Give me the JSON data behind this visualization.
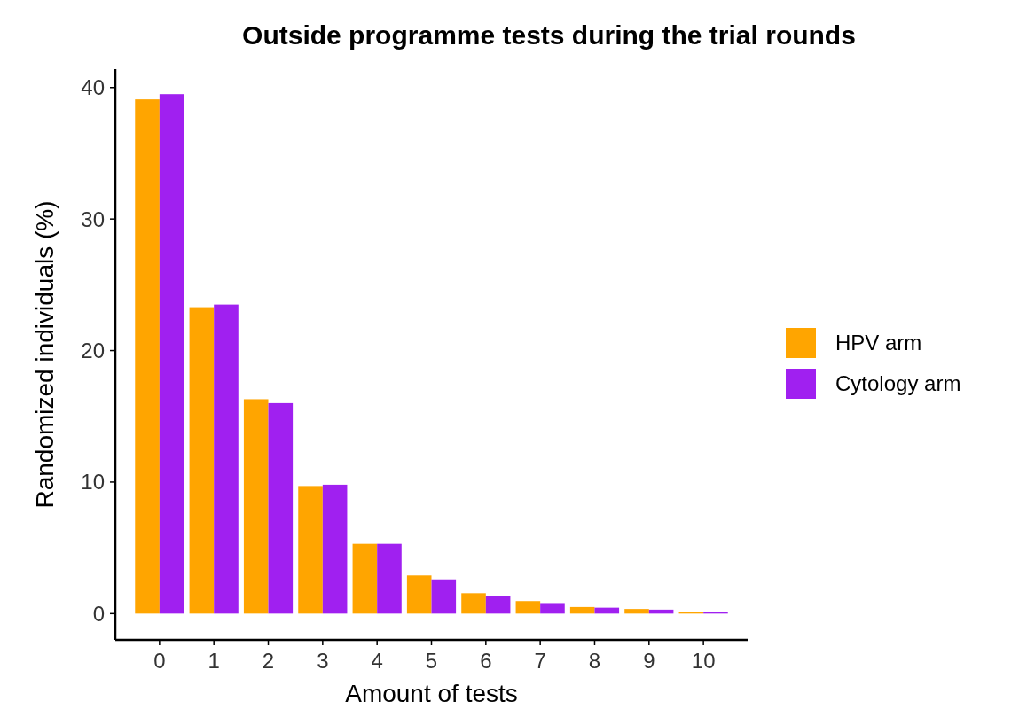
{
  "chart_data": {
    "type": "bar",
    "title": "Outside programme tests during the trial rounds",
    "xlabel": "Amount of tests",
    "ylabel": "Randomized individuals (%)",
    "categories": [
      "0",
      "1",
      "2",
      "3",
      "4",
      "5",
      "6",
      "7",
      "8",
      "9",
      "10"
    ],
    "series": [
      {
        "name": "HPV arm",
        "color": "#ffa500",
        "values": [
          39.1,
          23.3,
          16.3,
          9.7,
          5.3,
          2.9,
          1.55,
          0.95,
          0.5,
          0.35,
          0.15
        ]
      },
      {
        "name": "Cytology arm",
        "color": "#a020f0",
        "values": [
          39.5,
          23.5,
          16.0,
          9.8,
          5.3,
          2.6,
          1.35,
          0.8,
          0.45,
          0.3,
          0.12
        ]
      }
    ],
    "ylim": [
      -2,
      41.4
    ],
    "yticks": [
      0,
      10,
      20,
      30,
      40
    ],
    "grid": false,
    "legend": "right"
  }
}
